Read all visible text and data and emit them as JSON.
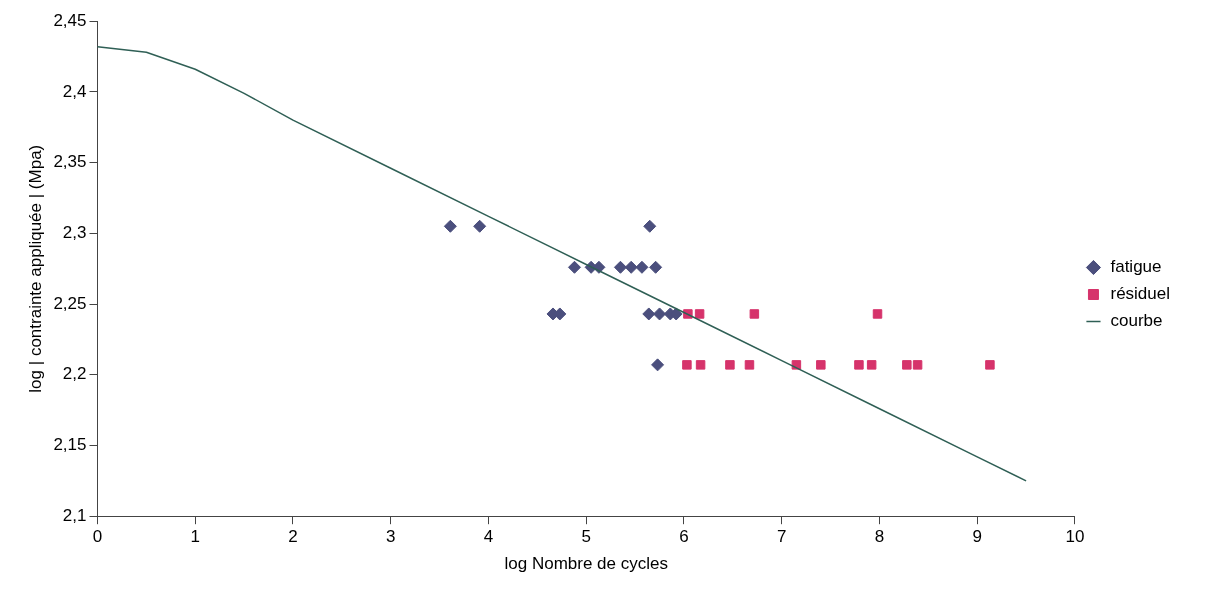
{
  "chart_data": {
    "type": "scatter",
    "xlabel": "log Nombre de cycles",
    "ylabel": "log | contrainte appliquée | (Mpa)",
    "xlim": [
      0,
      10
    ],
    "xticks": [
      0,
      1,
      2,
      3,
      4,
      5,
      6,
      7,
      8,
      9,
      10
    ],
    "ylim": [
      2.1,
      2.45
    ],
    "yticks": [
      {
        "value": 2.1,
        "label": "2,1"
      },
      {
        "value": 2.15,
        "label": "2,15"
      },
      {
        "value": 2.2,
        "label": "2,2"
      },
      {
        "value": 2.25,
        "label": "2,25"
      },
      {
        "value": 2.3,
        "label": "2,3"
      },
      {
        "value": 2.35,
        "label": "2,35"
      },
      {
        "value": 2.4,
        "label": "2,4"
      },
      {
        "value": 2.45,
        "label": "2,45"
      }
    ],
    "grid": false,
    "legend": "right",
    "series": [
      {
        "name": "fatigue",
        "type": "scatter",
        "marker": "diamond",
        "color": "#4b4f7d",
        "x": [
          3.61,
          3.91,
          5.65,
          4.88,
          5.05,
          5.13,
          5.35,
          5.46,
          5.57,
          5.71,
          4.66,
          4.73,
          5.64,
          5.75,
          5.86,
          5.92,
          5.73
        ],
        "values": [
          2.305,
          2.305,
          2.305,
          2.276,
          2.276,
          2.276,
          2.276,
          2.276,
          2.276,
          2.276,
          2.243,
          2.243,
          2.243,
          2.243,
          2.243,
          2.243,
          2.207
        ]
      },
      {
        "name": "résiduel",
        "type": "scatter",
        "marker": "square",
        "color": "#d6336b",
        "x": [
          6.04,
          6.16,
          6.72,
          7.98,
          6.03,
          6.17,
          6.47,
          6.67,
          7.15,
          7.4,
          7.79,
          7.92,
          8.28,
          8.39,
          9.13
        ],
        "values": [
          2.243,
          2.243,
          2.243,
          2.243,
          2.207,
          2.207,
          2.207,
          2.207,
          2.207,
          2.207,
          2.207,
          2.207,
          2.207,
          2.207,
          2.207
        ]
      },
      {
        "name": "courbe",
        "type": "line",
        "marker": "none",
        "line_style": "solid",
        "color": "#2f5f55",
        "x": [
          0,
          0.5,
          1,
          1.5,
          2,
          3,
          4,
          5,
          6,
          7,
          8,
          9,
          9.5
        ],
        "values": [
          2.432,
          2.428,
          2.416,
          2.399,
          2.38,
          2.346,
          2.312,
          2.278,
          2.244,
          2.21,
          2.176,
          2.142,
          2.125
        ]
      }
    ]
  }
}
